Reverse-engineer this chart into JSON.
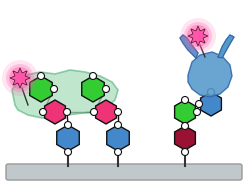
{
  "bg_color": "#ffffff",
  "surface_color": "#c0c8cc",
  "surface_edge": "#999999",
  "green_sugar": "#33cc33",
  "pink_sugar": "#ee3377",
  "blue_sugar": "#4488cc",
  "dark_red_sugar": "#991133",
  "lectin_fill": "#aaddbb",
  "lectin_edge": "#66bb88",
  "lectin_star": "#ff55aa",
  "antibody_fill": "#5599cc",
  "antibody_edge": "#3366aa",
  "antibody_star": "#ff55aa",
  "linker_color": "#111111",
  "oxygen_fill": "#ffffff",
  "oxygen_edge": "#111111",
  "stem_color": "#333333"
}
